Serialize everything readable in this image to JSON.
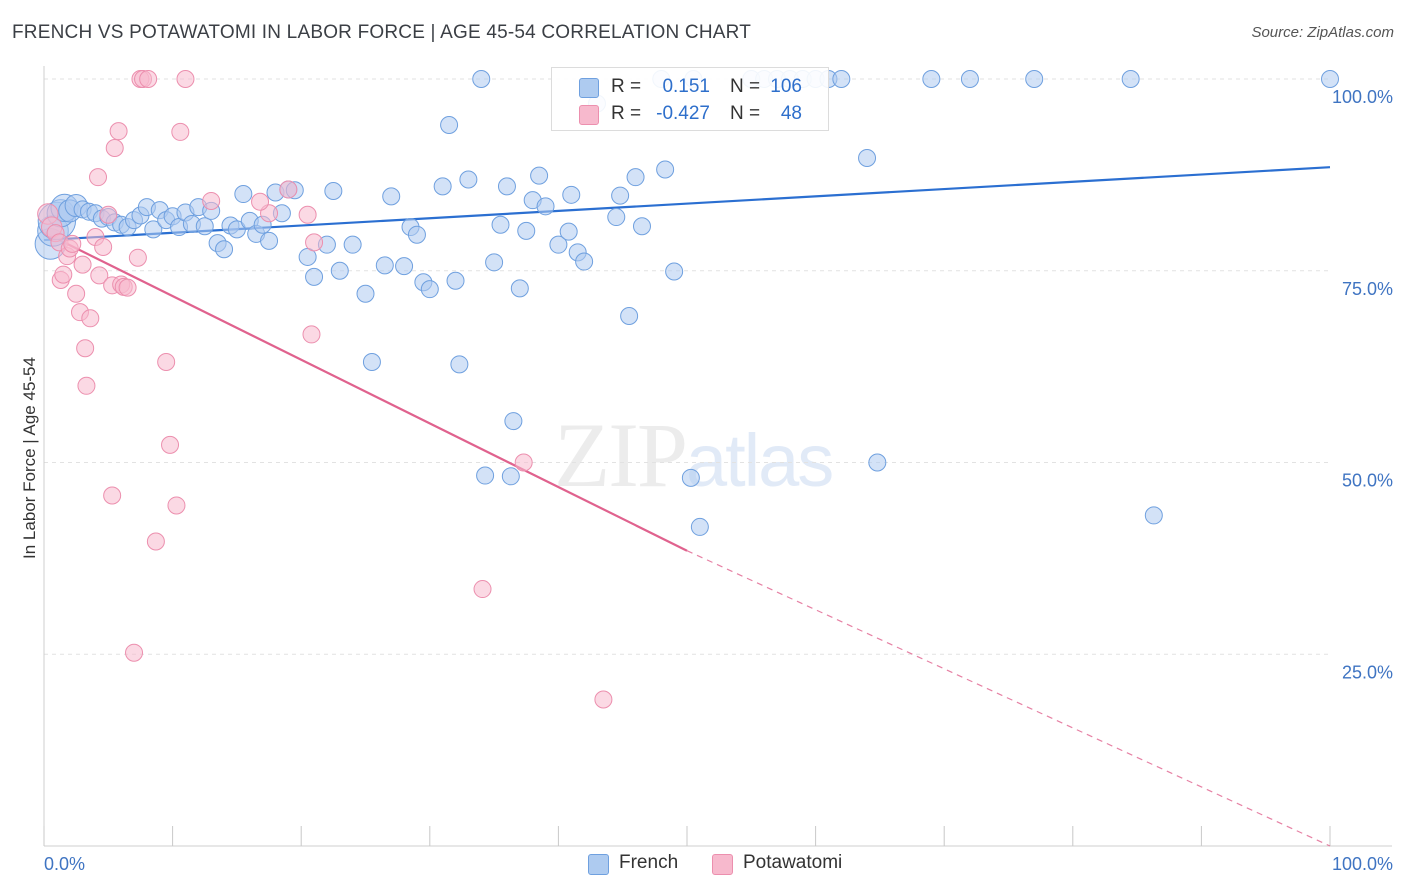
{
  "title": "FRENCH VS POTAWATOMI IN LABOR FORCE | AGE 45-54 CORRELATION CHART",
  "source": "Source: ZipAtlas.com",
  "watermark": {
    "zip": "ZIP",
    "atlas": "atlas"
  },
  "legend": {
    "french": {
      "r_label": "R =",
      "r_value": "0.151",
      "n_label": "N =",
      "n_value": "106"
    },
    "potawatomi": {
      "r_label": "R =",
      "r_value": "-0.427",
      "n_label": "N =",
      "n_value": "48"
    }
  },
  "bottom_legend": {
    "french": "French",
    "potawatomi": "Potawatomi"
  },
  "colors": {
    "french_fill": "#aecbf0",
    "french_stroke": "#6fa0df",
    "french_line": "#2b6fd1",
    "pota_fill": "#f7b9cd",
    "pota_stroke": "#ec8fae",
    "pota_line": "#e0628e",
    "grid": "#e2e2e2",
    "tick_text": "#3f74c2"
  },
  "chart_data": {
    "type": "scatter",
    "title": "FRENCH VS POTAWATOMI IN LABOR FORCE | AGE 45-54 CORRELATION CHART",
    "xlabel": "",
    "ylabel": "In Labor Force | Age 45-54",
    "xlim": [
      0,
      100
    ],
    "ylim": [
      0,
      100
    ],
    "x_tick_labels": [
      "0.0%",
      "100.0%"
    ],
    "y_tick_labels": [
      "25.0%",
      "50.0%",
      "75.0%",
      "100.0%"
    ],
    "y_ticks": [
      25,
      50,
      75,
      100
    ],
    "grid": true,
    "legend_position": "top-center",
    "series": [
      {
        "name": "French",
        "trend": {
          "x": [
            0,
            100
          ],
          "y": [
            79.0,
            88.5
          ]
        },
        "points": [
          [
            0.5,
            78.5,
            1.8
          ],
          [
            0.7,
            80.2,
            1.8
          ],
          [
            1.0,
            81.5,
            2.2
          ],
          [
            1.3,
            82.5,
            1.6
          ],
          [
            1.6,
            83.2,
            1.6
          ],
          [
            2.0,
            82.8,
            1.3
          ],
          [
            2.5,
            83.5,
            1.3
          ],
          [
            3.0,
            83.0,
            1.0
          ],
          [
            3.5,
            82.7,
            1.0
          ],
          [
            4.0,
            82.5,
            1.0
          ],
          [
            4.5,
            81.8,
            1.0
          ],
          [
            5.0,
            82.0,
            1.0
          ],
          [
            5.5,
            81.3,
            1.0
          ],
          [
            6.0,
            81.0,
            1.0
          ],
          [
            6.5,
            80.7,
            1.0
          ],
          [
            7.0,
            81.6,
            1.0
          ],
          [
            7.5,
            82.2,
            1.0
          ],
          [
            8.0,
            83.3,
            1.0
          ],
          [
            8.5,
            80.4,
            1.0
          ],
          [
            9.0,
            82.9,
            1.0
          ],
          [
            9.5,
            81.6,
            1.0
          ],
          [
            10.0,
            82.1,
            1.0
          ],
          [
            10.5,
            80.7,
            1.0
          ],
          [
            11.0,
            82.6,
            1.0
          ],
          [
            11.5,
            81.1,
            1.0
          ],
          [
            12.0,
            83.3,
            1.0
          ],
          [
            12.5,
            80.8,
            1.0
          ],
          [
            13.0,
            82.8,
            1.0
          ],
          [
            13.5,
            78.6,
            1.0
          ],
          [
            14.0,
            77.8,
            1.0
          ],
          [
            14.5,
            80.9,
            1.0
          ],
          [
            15.0,
            80.4,
            1.0
          ],
          [
            16.0,
            81.5,
            1.0
          ],
          [
            16.5,
            79.8,
            1.0
          ],
          [
            17.0,
            81.0,
            1.0
          ],
          [
            17.5,
            78.9,
            1.0
          ],
          [
            18.0,
            85.2,
            1.0
          ],
          [
            18.5,
            82.5,
            1.0
          ],
          [
            19.0,
            85.6,
            1.0
          ],
          [
            19.5,
            85.5,
            1.0
          ],
          [
            20.5,
            76.8,
            1.0
          ],
          [
            21.0,
            74.2,
            1.0
          ],
          [
            22.0,
            78.4,
            1.0
          ],
          [
            23.0,
            75.0,
            1.0
          ],
          [
            24.0,
            78.4,
            1.0
          ],
          [
            25.0,
            72.0,
            1.0
          ],
          [
            26.5,
            75.7,
            1.0
          ],
          [
            27.0,
            84.7,
            1.0
          ],
          [
            28.0,
            75.6,
            1.0
          ],
          [
            28.5,
            80.7,
            1.0
          ],
          [
            29.0,
            79.7,
            1.0
          ],
          [
            29.5,
            73.5,
            1.0
          ],
          [
            30.0,
            72.6,
            1.0
          ],
          [
            31.0,
            86.0,
            1.0
          ],
          [
            31.5,
            94.0,
            1.0
          ],
          [
            32.0,
            73.7,
            1.0
          ],
          [
            33.0,
            86.9,
            1.0
          ],
          [
            34.0,
            100.0,
            1.0
          ],
          [
            35.0,
            76.1,
            1.0
          ],
          [
            35.5,
            81.0,
            1.0
          ],
          [
            37.0,
            72.7,
            1.0
          ],
          [
            38.0,
            84.2,
            1.0
          ],
          [
            38.5,
            87.4,
            1.0
          ],
          [
            39.0,
            83.4,
            1.0
          ],
          [
            40.0,
            78.4,
            1.0
          ],
          [
            41.0,
            84.9,
            1.0
          ],
          [
            41.5,
            77.4,
            1.0
          ],
          [
            42.0,
            76.2,
            1.0
          ],
          [
            43.0,
            96.8,
            1.0
          ],
          [
            44.5,
            82.0,
            1.0
          ],
          [
            44.8,
            84.8,
            1.0
          ],
          [
            45.5,
            69.1,
            1.0
          ],
          [
            46.0,
            87.2,
            1.0
          ],
          [
            48.0,
            100.0,
            1.0
          ],
          [
            48.3,
            88.2,
            1.0
          ],
          [
            49.0,
            74.9,
            1.0
          ],
          [
            50.5,
            100.0,
            1.0
          ],
          [
            55.0,
            100.0,
            1.0
          ],
          [
            56.0,
            100.0,
            1.0
          ],
          [
            57.0,
            100.0,
            1.0
          ],
          [
            58.0,
            100.0,
            1.0
          ],
          [
            59.0,
            100.0,
            1.0
          ],
          [
            60.0,
            100.0,
            1.0
          ],
          [
            61.0,
            100.0,
            1.0
          ],
          [
            62.0,
            100.0,
            1.0
          ],
          [
            69.0,
            100.0,
            1.0
          ],
          [
            72.0,
            100.0,
            1.0
          ],
          [
            77.0,
            100.0,
            1.0
          ],
          [
            84.5,
            100.0,
            1.0
          ],
          [
            100.0,
            100.0,
            1.0
          ],
          [
            64.0,
            89.7,
            1.0
          ],
          [
            25.5,
            63.1,
            1.0
          ],
          [
            32.3,
            62.8,
            1.0
          ],
          [
            36.5,
            55.4,
            1.0
          ],
          [
            34.3,
            48.3,
            1.0
          ],
          [
            36.3,
            48.2,
            1.0
          ],
          [
            50.3,
            48.0,
            1.0
          ],
          [
            51.0,
            41.6,
            1.0
          ],
          [
            86.3,
            43.1,
            1.0
          ],
          [
            64.8,
            50.0,
            1.0
          ],
          [
            36.0,
            86.0,
            1.0
          ],
          [
            15.5,
            85.0,
            1.0
          ],
          [
            22.5,
            85.4,
            1.0
          ],
          [
            37.5,
            80.2,
            1.0
          ],
          [
            40.8,
            80.1,
            1.0
          ],
          [
            46.5,
            80.8,
            1.0
          ]
        ]
      },
      {
        "name": "Potawatomi",
        "trend": {
          "x": [
            0,
            50
          ],
          "y": [
            80.0,
            38.5
          ]
        },
        "trend_extension": {
          "x": [
            50,
            100
          ],
          "y": [
            38.5,
            -2.0
          ]
        },
        "points": [
          [
            0.3,
            82.4,
            1.2
          ],
          [
            0.6,
            80.7,
            1.2
          ],
          [
            0.9,
            79.9,
            1.0
          ],
          [
            1.2,
            78.7,
            1.0
          ],
          [
            1.3,
            73.8,
            1.0
          ],
          [
            1.5,
            74.5,
            1.0
          ],
          [
            1.8,
            76.9,
            1.0
          ],
          [
            2.0,
            77.9,
            1.0
          ],
          [
            2.2,
            78.5,
            1.0
          ],
          [
            2.5,
            72.0,
            1.0
          ],
          [
            2.8,
            69.6,
            1.0
          ],
          [
            3.0,
            75.8,
            1.0
          ],
          [
            3.2,
            64.9,
            1.0
          ],
          [
            3.3,
            60.0,
            1.0
          ],
          [
            3.6,
            68.8,
            1.0
          ],
          [
            4.0,
            79.4,
            1.0
          ],
          [
            4.2,
            87.2,
            1.0
          ],
          [
            4.3,
            74.4,
            1.0
          ],
          [
            4.6,
            78.1,
            1.0
          ],
          [
            5.0,
            82.3,
            1.0
          ],
          [
            5.3,
            73.1,
            1.0
          ],
          [
            5.3,
            45.7,
            1.0
          ],
          [
            5.5,
            91.0,
            1.0
          ],
          [
            5.8,
            93.2,
            1.0
          ],
          [
            6.0,
            73.2,
            1.0
          ],
          [
            6.2,
            72.9,
            1.0
          ],
          [
            6.5,
            72.8,
            1.0
          ],
          [
            7.3,
            76.7,
            1.0
          ],
          [
            7.5,
            100.0,
            1.0
          ],
          [
            7.7,
            100.0,
            1.0
          ],
          [
            8.1,
            100.0,
            1.0
          ],
          [
            8.7,
            39.7,
            1.0
          ],
          [
            9.5,
            63.1,
            1.0
          ],
          [
            9.8,
            52.3,
            1.0
          ],
          [
            10.3,
            44.4,
            1.0
          ],
          [
            10.6,
            93.1,
            1.0
          ],
          [
            11.0,
            100.0,
            1.0
          ],
          [
            13.0,
            84.1,
            1.0
          ],
          [
            17.5,
            82.5,
            1.0
          ],
          [
            19.0,
            85.6,
            1.0
          ],
          [
            20.5,
            82.3,
            1.0
          ],
          [
            21.0,
            78.7,
            1.0
          ],
          [
            20.8,
            66.7,
            1.0
          ],
          [
            37.3,
            50.0,
            1.0
          ],
          [
            34.1,
            33.5,
            1.0
          ],
          [
            43.5,
            19.1,
            1.0
          ],
          [
            7.0,
            25.2,
            1.0
          ],
          [
            16.8,
            84.0,
            1.0
          ]
        ]
      }
    ]
  },
  "y_axis_label": "In Labor Force | Age 45-54"
}
